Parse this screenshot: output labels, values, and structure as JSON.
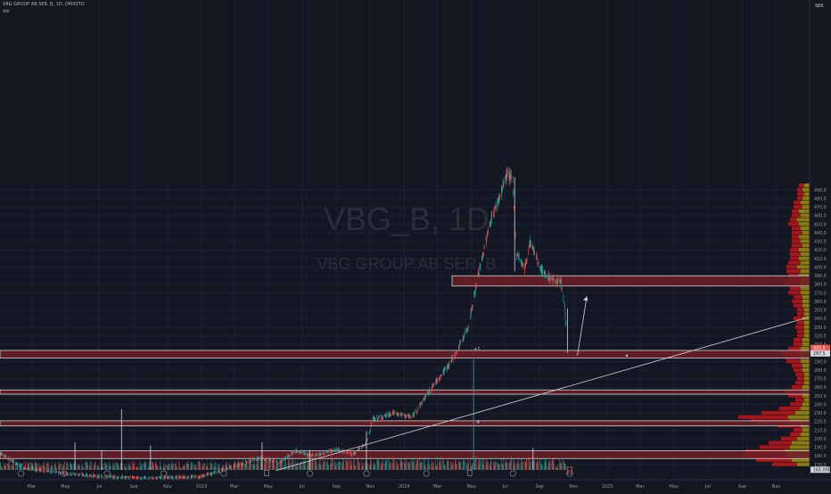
{
  "header": {
    "symbol_line": "VBG GROUP AB SER. B, 1D, OMXSTO",
    "indicator_label": "Vol"
  },
  "watermark": {
    "ticker": "VBG_B, 1D",
    "name": "VBG GROUP AB SER. B"
  },
  "colors": {
    "background": "#131722",
    "up": "#26a69a",
    "down": "#ef5350",
    "zone_fill": "#6e1f26",
    "zone_border": "#d1d4dc",
    "profile_red": "#a3161b",
    "profile_olive": "#8a7a14",
    "axis_text": "#9598a1"
  },
  "chart_data": {
    "type": "candlestick",
    "currency": "SEK",
    "ylim": [
      165,
      500
    ],
    "y_ticks": [
      170,
      180,
      190,
      200,
      210,
      220,
      230,
      240,
      250,
      260,
      270,
      280,
      290,
      300,
      310,
      320,
      330,
      340,
      350,
      360,
      370,
      380,
      390,
      400,
      410,
      420,
      430,
      440,
      450,
      460,
      470,
      480,
      490
    ],
    "x_labels": [
      {
        "label": "Mar",
        "date": "2022-03-01"
      },
      {
        "label": "May",
        "date": "2022-05-01"
      },
      {
        "label": "Jul",
        "date": "2022-07-01"
      },
      {
        "label": "Sep",
        "date": "2022-09-01"
      },
      {
        "label": "Nov",
        "date": "2022-11-01"
      },
      {
        "label": "2023",
        "date": "2023-01-01"
      },
      {
        "label": "Mar",
        "date": "2023-03-01"
      },
      {
        "label": "May",
        "date": "2023-05-01"
      },
      {
        "label": "Jul",
        "date": "2023-07-01"
      },
      {
        "label": "Sep",
        "date": "2023-09-01"
      },
      {
        "label": "Nov",
        "date": "2023-11-01"
      },
      {
        "label": "2024",
        "date": "2024-01-01"
      },
      {
        "label": "Mar",
        "date": "2024-03-01"
      },
      {
        "label": "May",
        "date": "2024-05-01"
      },
      {
        "label": "Jul",
        "date": "2024-07-01"
      },
      {
        "label": "Sep",
        "date": "2024-09-01"
      },
      {
        "label": "Nov",
        "date": "2024-11-01"
      },
      {
        "label": "2025",
        "date": "2025-01-01"
      },
      {
        "label": "Mar",
        "date": "2025-03-01"
      },
      {
        "label": "May",
        "date": "2025-05-01"
      },
      {
        "label": "Jul",
        "date": "2025-07-01"
      },
      {
        "label": "Sep",
        "date": "2025-09-01"
      },
      {
        "label": "Nov",
        "date": "2025-11-01"
      }
    ],
    "price_path": [
      [
        "2022-01-03",
        184
      ],
      [
        "2022-01-25",
        174
      ],
      [
        "2022-02-15",
        166
      ],
      [
        "2022-04-01",
        162
      ],
      [
        "2022-07-01",
        156
      ],
      [
        "2022-10-01",
        154
      ],
      [
        "2023-01-01",
        156
      ],
      [
        "2023-03-01",
        168
      ],
      [
        "2023-04-15",
        178
      ],
      [
        "2023-05-20",
        172
      ],
      [
        "2023-06-20",
        186
      ],
      [
        "2023-07-20",
        180
      ],
      [
        "2023-09-01",
        188
      ],
      [
        "2023-10-01",
        182
      ],
      [
        "2023-10-25",
        195
      ],
      [
        "2023-11-05",
        222
      ],
      [
        "2023-12-15",
        230
      ],
      [
        "2024-01-15",
        225
      ],
      [
        "2024-02-20",
        260
      ],
      [
        "2024-03-20",
        285
      ],
      [
        "2024-04-05",
        302
      ],
      [
        "2024-04-25",
        330
      ],
      [
        "2024-05-15",
        395
      ],
      [
        "2024-06-05",
        455
      ],
      [
        "2024-06-20",
        480
      ],
      [
        "2024-07-05",
        510
      ],
      [
        "2024-07-15",
        500
      ],
      [
        "2024-07-20",
        420
      ],
      [
        "2024-08-05",
        398
      ],
      [
        "2024-08-15",
        430
      ],
      [
        "2024-09-05",
        395
      ],
      [
        "2024-09-25",
        385
      ],
      [
        "2024-10-10",
        380
      ],
      [
        "2024-10-16",
        355
      ],
      [
        "2024-10-21",
        305
      ]
    ],
    "zones": [
      {
        "label": "red zone",
        "low": 378,
        "high": 390
      },
      {
        "label": "red zone",
        "low": 294,
        "high": 303
      },
      {
        "label": "red zone",
        "low": 252,
        "high": 257
      },
      {
        "label": "red zone",
        "low": 215,
        "high": 221
      },
      {
        "label": "red zone",
        "low": 177,
        "high": 186
      }
    ],
    "trendlines": [
      {
        "from": [
          "2023-05-15",
          163
        ],
        "to": [
          "2025-12-31",
          342
        ]
      },
      {
        "from": [
          "2024-11-08",
          297
        ],
        "to": [
          "2024-11-25",
          366
        ]
      }
    ],
    "price_labels": [
      {
        "price": 306,
        "text": "302.5",
        "color": "#ef5350"
      },
      {
        "price": 299.5,
        "text": "297.5",
        "color": "#d1d4dc"
      },
      {
        "price": 164,
        "text": "165.00B",
        "color": "#d1d4dc"
      }
    ],
    "volume_profile": [
      {
        "p": 170,
        "r": 28,
        "o": 14
      },
      {
        "p": 175,
        "r": 40,
        "o": 20
      },
      {
        "p": 180,
        "r": 52,
        "o": 24
      },
      {
        "p": 185,
        "r": 44,
        "o": 28
      },
      {
        "p": 190,
        "r": 34,
        "o": 22
      },
      {
        "p": 195,
        "r": 26,
        "o": 20
      },
      {
        "p": 200,
        "r": 18,
        "o": 14
      },
      {
        "p": 205,
        "r": 12,
        "o": 10
      },
      {
        "p": 210,
        "r": 10,
        "o": 8
      },
      {
        "p": 215,
        "r": 26,
        "o": 10
      },
      {
        "p": 220,
        "r": 44,
        "o": 22
      },
      {
        "p": 225,
        "r": 56,
        "o": 24
      },
      {
        "p": 230,
        "r": 38,
        "o": 16
      },
      {
        "p": 235,
        "r": 24,
        "o": 10
      },
      {
        "p": 240,
        "r": 14,
        "o": 8
      },
      {
        "p": 245,
        "r": 10,
        "o": 6
      },
      {
        "p": 250,
        "r": 16,
        "o": 8
      },
      {
        "p": 255,
        "r": 18,
        "o": 10
      },
      {
        "p": 260,
        "r": 12,
        "o": 8
      },
      {
        "p": 265,
        "r": 10,
        "o": 6
      },
      {
        "p": 270,
        "r": 8,
        "o": 6
      },
      {
        "p": 275,
        "r": 10,
        "o": 6
      },
      {
        "p": 280,
        "r": 10,
        "o": 8
      },
      {
        "p": 285,
        "r": 12,
        "o": 8
      },
      {
        "p": 290,
        "r": 16,
        "o": 10
      },
      {
        "p": 295,
        "r": 18,
        "o": 10
      },
      {
        "p": 300,
        "r": 20,
        "o": 12
      },
      {
        "p": 305,
        "r": 14,
        "o": 10
      },
      {
        "p": 310,
        "r": 10,
        "o": 8
      },
      {
        "p": 315,
        "r": 10,
        "o": 8
      },
      {
        "p": 320,
        "r": 8,
        "o": 6
      },
      {
        "p": 325,
        "r": 8,
        "o": 6
      },
      {
        "p": 330,
        "r": 10,
        "o": 6
      },
      {
        "p": 335,
        "r": 8,
        "o": 6
      },
      {
        "p": 340,
        "r": 10,
        "o": 8
      },
      {
        "p": 345,
        "r": 8,
        "o": 6
      },
      {
        "p": 350,
        "r": 8,
        "o": 6
      },
      {
        "p": 355,
        "r": 10,
        "o": 8
      },
      {
        "p": 360,
        "r": 12,
        "o": 8
      },
      {
        "p": 365,
        "r": 10,
        "o": 8
      },
      {
        "p": 370,
        "r": 14,
        "o": 10
      },
      {
        "p": 375,
        "r": 12,
        "o": 10
      },
      {
        "p": 380,
        "r": 16,
        "o": 12
      },
      {
        "p": 385,
        "r": 14,
        "o": 10
      },
      {
        "p": 390,
        "r": 12,
        "o": 12
      },
      {
        "p": 395,
        "r": 16,
        "o": 10
      },
      {
        "p": 400,
        "r": 12,
        "o": 14
      },
      {
        "p": 405,
        "r": 14,
        "o": 10
      },
      {
        "p": 410,
        "r": 10,
        "o": 12
      },
      {
        "p": 415,
        "r": 12,
        "o": 10
      },
      {
        "p": 420,
        "r": 10,
        "o": 12
      },
      {
        "p": 425,
        "r": 12,
        "o": 8
      },
      {
        "p": 430,
        "r": 10,
        "o": 10
      },
      {
        "p": 435,
        "r": 8,
        "o": 12
      },
      {
        "p": 440,
        "r": 12,
        "o": 8
      },
      {
        "p": 445,
        "r": 10,
        "o": 10
      },
      {
        "p": 450,
        "r": 12,
        "o": 12
      },
      {
        "p": 455,
        "r": 8,
        "o": 14
      },
      {
        "p": 460,
        "r": 10,
        "o": 10
      },
      {
        "p": 465,
        "r": 8,
        "o": 12
      },
      {
        "p": 470,
        "r": 10,
        "o": 8
      },
      {
        "p": 475,
        "r": 8,
        "o": 10
      },
      {
        "p": 480,
        "r": 6,
        "o": 8
      },
      {
        "p": 485,
        "r": 8,
        "o": 6
      },
      {
        "p": 490,
        "r": 6,
        "o": 8
      },
      {
        "p": 495,
        "r": 6,
        "o": 6
      }
    ],
    "volume_events": [
      {
        "date": "2022-05-18",
        "rel": 0.25
      },
      {
        "date": "2022-07-05",
        "rel": 0.18
      },
      {
        "date": "2022-08-10",
        "rel": 0.55
      },
      {
        "date": "2022-10-01",
        "rel": 0.22
      },
      {
        "date": "2023-04-20",
        "rel": 0.25
      },
      {
        "date": "2023-07-15",
        "rel": 0.18
      },
      {
        "date": "2023-10-25",
        "rel": 0.35
      },
      {
        "date": "2024-05-05",
        "rel": 1.0
      },
      {
        "date": "2024-08-20",
        "rel": 0.2
      }
    ],
    "event_markers": [
      {
        "date": "2022-02-10",
        "type": "E"
      },
      {
        "date": "2022-04-28",
        "type": "E"
      },
      {
        "date": "2022-07-15",
        "type": "E"
      },
      {
        "date": "2022-10-25",
        "type": "E"
      },
      {
        "date": "2023-02-10",
        "type": "E"
      },
      {
        "date": "2023-04-28",
        "type": "D"
      },
      {
        "date": "2023-07-15",
        "type": "E"
      },
      {
        "date": "2023-10-25",
        "type": "E"
      },
      {
        "date": "2024-02-10",
        "type": "E"
      },
      {
        "date": "2024-04-28",
        "type": "D"
      },
      {
        "date": "2024-07-15",
        "type": "E"
      },
      {
        "date": "2024-10-25",
        "type": "E"
      }
    ],
    "text_markers": [
      {
        "date": "2024-05-05",
        "price": 303,
        "text": "+1"
      },
      {
        "date": "2024-05-10",
        "price": 218,
        "text": "4"
      }
    ]
  }
}
